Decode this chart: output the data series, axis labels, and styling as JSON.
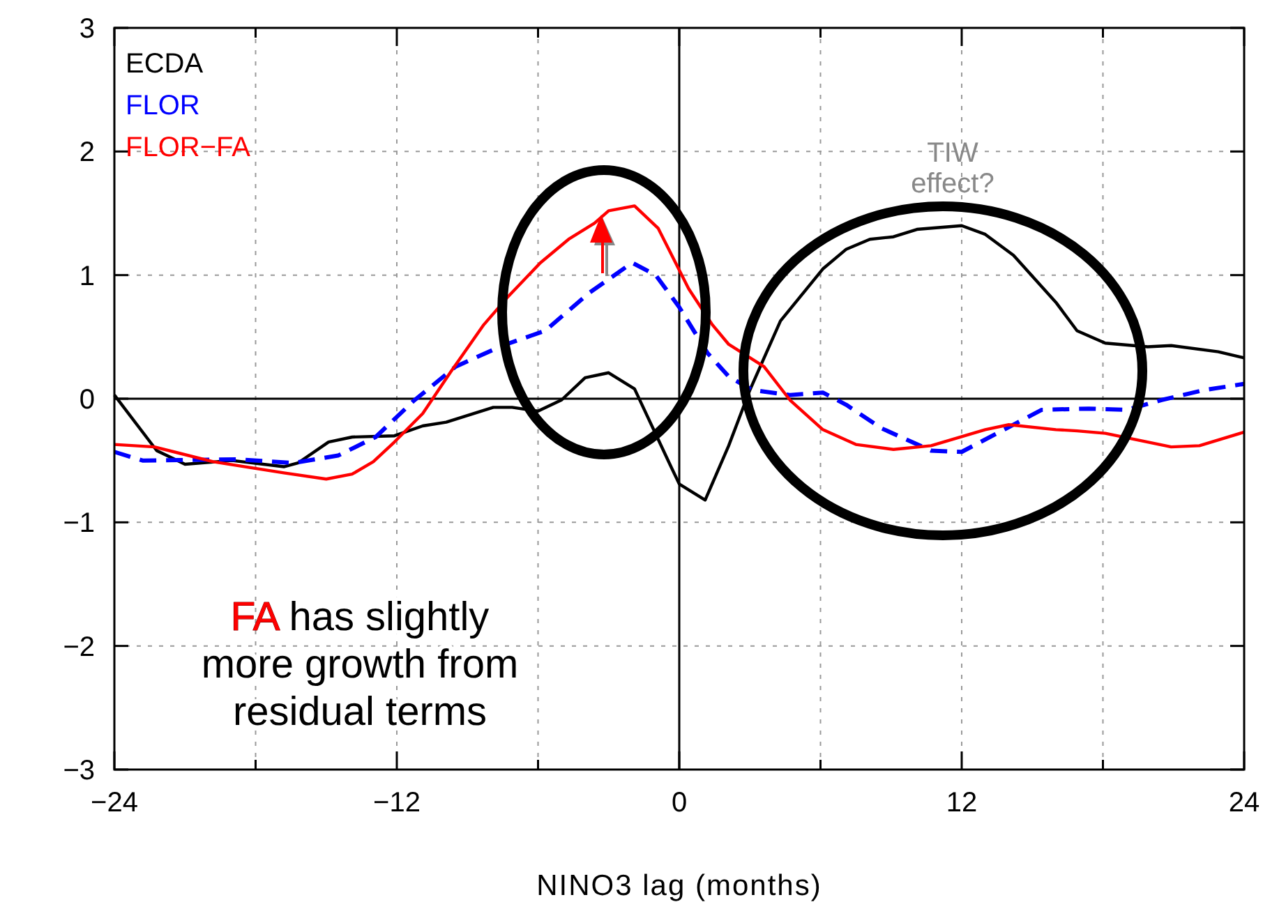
{
  "chart_data": {
    "type": "line",
    "xlabel": "NINO3 lag (months)",
    "xlim": [
      -24,
      24
    ],
    "xticks": [
      {
        "value": -24,
        "label": "−24"
      },
      {
        "value": -18,
        "label": null
      },
      {
        "value": -12,
        "label": "−12"
      },
      {
        "value": -6,
        "label": null
      },
      0,
      {
        "value": 6,
        "label": null
      },
      12,
      {
        "value": 18,
        "label": null
      },
      24
    ],
    "ylim": [
      -3,
      3
    ],
    "yticks": [
      {
        "value": -3,
        "label": "−3"
      },
      {
        "value": -2,
        "label": "−2"
      },
      {
        "value": -1,
        "label": "−1"
      },
      0,
      1,
      2,
      3
    ],
    "grid": true,
    "legend": "top left",
    "line_style": "solid",
    "marker": "none",
    "annotations": [
      "TIW effect?",
      "FA has slightly more growth from residual terms"
    ],
    "series": [
      {
        "name": "ECDA",
        "color": "#000000",
        "x": [
          -24,
          -22.2,
          -21,
          -19,
          -16.8,
          -16.2,
          -14.9,
          -13.9,
          -12.1,
          -10.9,
          -9.9,
          -7.9,
          -7.1,
          -6,
          -5,
          -4,
          -3,
          -1.9,
          -0.4,
          0,
          1.1,
          2.1,
          3,
          4.3,
          6.1,
          7.1,
          8.1,
          9.1,
          10.1,
          12,
          13,
          14.2,
          16,
          16.9,
          18.1,
          19.9,
          20.9,
          22.9,
          24
        ],
        "values": [
          0.03,
          -0.42,
          -0.53,
          -0.5,
          -0.55,
          -0.52,
          -0.35,
          -0.31,
          -0.3,
          -0.22,
          -0.19,
          -0.07,
          -0.07,
          -0.1,
          -0.01,
          0.17,
          0.21,
          0.08,
          -0.53,
          -0.69,
          -0.82,
          -0.38,
          0.07,
          0.63,
          1.05,
          1.21,
          1.29,
          1.31,
          1.37,
          1.4,
          1.33,
          1.16,
          0.78,
          0.55,
          0.45,
          0.42,
          0.43,
          0.38,
          0.33
        ]
      },
      {
        "name": "FLOR",
        "color": "#0000ff",
        "line_style": "dashed",
        "x": [
          -24,
          -22.8,
          -18.8,
          -16.4,
          -14.5,
          -12.9,
          -11.3,
          -9.5,
          -7.5,
          -5.7,
          -3.8,
          -2,
          -1,
          0,
          1.2,
          2.1,
          3.1,
          4.7,
          6.1,
          7.1,
          8.6,
          10.7,
          12,
          13.4,
          15.4,
          17.4,
          19,
          20.5,
          22.3,
          24
        ],
        "values": [
          -0.43,
          -0.5,
          -0.49,
          -0.52,
          -0.46,
          -0.31,
          -0.02,
          0.26,
          0.43,
          0.55,
          0.86,
          1.1,
          1.0,
          0.74,
          0.37,
          0.18,
          0.07,
          0.03,
          0.05,
          -0.05,
          -0.24,
          -0.42,
          -0.43,
          -0.29,
          -0.09,
          -0.08,
          -0.09,
          -0.01,
          0.07,
          0.12
        ]
      },
      {
        "name": "FLOR−FA",
        "color": "#ff0000",
        "x": [
          -24,
          -22.3,
          -19.8,
          -16.8,
          -15,
          -13.9,
          -13,
          -12.1,
          -10.9,
          -9.7,
          -8.3,
          -7.3,
          -5.9,
          -4.7,
          -3.6,
          -3,
          -1.9,
          -0.9,
          0.4,
          1.4,
          2.1,
          3.6,
          4.7,
          6.1,
          7.5,
          9.1,
          10.7,
          13,
          14,
          16,
          16.9,
          18.1,
          20.9,
          22.1,
          24
        ],
        "values": [
          -0.37,
          -0.39,
          -0.51,
          -0.6,
          -0.65,
          -0.61,
          -0.51,
          -0.35,
          -0.12,
          0.22,
          0.6,
          0.82,
          1.1,
          1.29,
          1.42,
          1.52,
          1.56,
          1.38,
          0.89,
          0.6,
          0.44,
          0.26,
          -0.01,
          -0.25,
          -0.37,
          -0.41,
          -0.38,
          -0.25,
          -0.21,
          -0.25,
          -0.26,
          -0.28,
          -0.39,
          -0.38,
          -0.27
        ]
      }
    ]
  }
}
